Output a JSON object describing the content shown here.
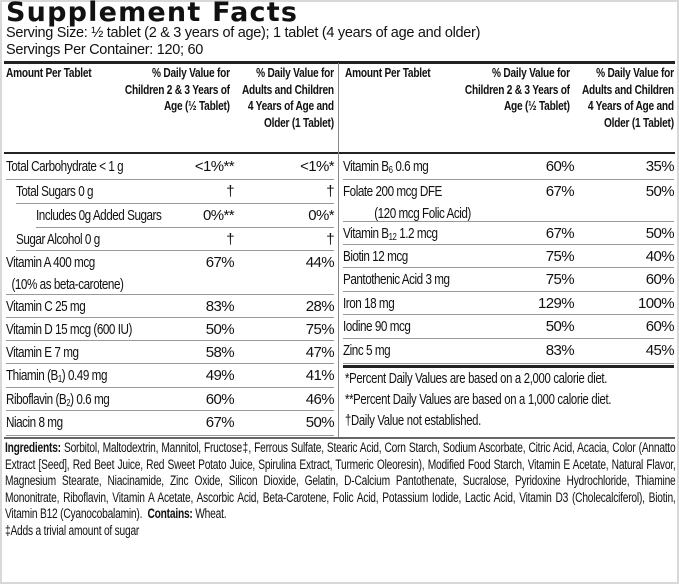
{
  "title": "Supplement Facts",
  "serving_size": "Serving Size: ½ tablet (2 & 3 years of age); 1 tablet (4 years of age and older)",
  "servings_per_container": "Servings Per Container: 120; 60",
  "headers": {
    "amount": "Amount Per Tablet",
    "children": "% Daily Value for Children 2 & 3 Years of Age (½ Tablet)",
    "adults": "% Daily Value for Adults and Children 4 Years of Age and Older (1 Tablet)"
  },
  "left_rows": [
    {
      "name": "Total Carbohydrate < 1 g",
      "child": "<1%**",
      "adult": "<1%*"
    },
    {
      "name": "Total Sugars 0 g",
      "child": "†",
      "adult": "†"
    },
    {
      "name": "Includes 0g Added Sugars",
      "child": "0%**",
      "adult": "0%*"
    },
    {
      "name": "Sugar Alcohol 0 g",
      "child": "†",
      "adult": "†"
    },
    {
      "name": "Vitamin A 400 mcg",
      "sub": "(10% as beta-carotene)",
      "child": "67%",
      "adult": "44%"
    },
    {
      "name": "Vitamin C 25 mg",
      "child": "83%",
      "adult": "28%"
    },
    {
      "name": "Vitamin D 15 mcg (600 IU)",
      "child": "50%",
      "adult": "75%"
    },
    {
      "name": "Vitamin E 7 mg",
      "child": "58%",
      "adult": "47%"
    },
    {
      "name": "Thiamin (B1) 0.49 mg",
      "child": "49%",
      "adult": "41%"
    },
    {
      "name": "Riboflavin (B2) 0.6 mg",
      "child": "60%",
      "adult": "46%"
    },
    {
      "name": "Niacin 8 mg",
      "child": "67%",
      "adult": "50%"
    }
  ],
  "right_rows": [
    {
      "name": "Vitamin B6 0.6 mg",
      "child": "60%",
      "adult": "35%"
    },
    {
      "name": "Folate 200 mcg DFE",
      "sub": "(120 mcg Folic Acid)",
      "child": "67%",
      "adult": "50%"
    },
    {
      "name": "Vitamin B12 1.2 mcg",
      "child": "67%",
      "adult": "50%"
    },
    {
      "name": "Biotin 12 mcg",
      "child": "75%",
      "adult": "40%"
    },
    {
      "name": "Pantothenic Acid 3 mg",
      "child": "75%",
      "adult": "60%"
    },
    {
      "name": "Iron 18 mg",
      "child": "129%",
      "adult": "100%"
    },
    {
      "name": "Iodine 90 mcg",
      "child": "50%",
      "adult": "60%"
    },
    {
      "name": "Zinc 5 mg",
      "child": "83%",
      "adult": "45%"
    }
  ],
  "footnotes": [
    "*Percent Daily Values are based on a 2,000 calorie diet.",
    "**Percent Daily Values are based on a 1,000 calorie diet.",
    "†Daily Value not established."
  ],
  "ingredients_label": "Ingredients:",
  "ingredients": "Sorbitol, Maltodextrin, Mannitol, Fructose‡, Ferrous Sulfate, Stearic Acid, Corn Starch, Sodium Ascorbate, Citric Acid, Acacia, Color (Annatto Extract [Seed], Red Beet Juice, Red Sweet Potato Juice, Spirulina Extract, Turmeric Oleoresin), Modified Food Starch, Vitamin E Acetate, Natural Flavor, Magnesium Stearate, Niacinamide, Zinc Oxide, Silicon Dioxide, Gelatin, D-Calcium Pantothenate, Sucralose, Pyridoxine Hydrochloride, Thiamine Mononitrate, Riboflavin, Vitamin A Acetate, Ascorbic Acid, Beta-Carotene, Folic Acid, Potassium Iodide, Lactic Acid, Vitamin D3 (Cholecalciferol), Biotin, Vitamin B12 (Cyanocobalamin).",
  "contains_label": "Contains:",
  "contains": "Wheat.",
  "adds_note": "‡Adds a trivial amount of sugar"
}
